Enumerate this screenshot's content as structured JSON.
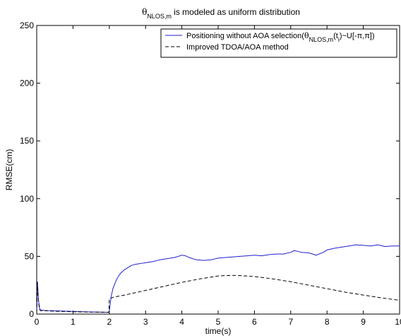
{
  "chart_data": {
    "type": "line",
    "title": {
      "parts": [
        {
          "text": "θ",
          "style": "symbol"
        },
        {
          "text": "NLOS,m",
          "style": "sub"
        },
        {
          "text": " is modeled as uniform distribution",
          "style": "normal"
        }
      ]
    },
    "xlabel": "time(s)",
    "ylabel": "RMSE(cm)",
    "xlim": [
      0,
      10
    ],
    "ylim": [
      0,
      250
    ],
    "xticks": [
      0,
      1,
      2,
      3,
      4,
      5,
      6,
      7,
      8,
      9,
      10
    ],
    "yticks": [
      0,
      50,
      100,
      150,
      200,
      250
    ],
    "grid": false,
    "legend_position": "top-right",
    "series": [
      {
        "name": "Positioning without AOA selection(θNLOS,m(ti)~U[-π,π])",
        "legend_parts": [
          {
            "text": "Positioning without AOA selection(",
            "style": "normal"
          },
          {
            "text": "θ",
            "style": "symbol"
          },
          {
            "text": "NLOS,m",
            "style": "sub"
          },
          {
            "text": "(t",
            "style": "normal"
          },
          {
            "text": "i",
            "style": "sub"
          },
          {
            "text": ")~U[-π,π])",
            "style": "normal"
          }
        ],
        "color": "#1f1fd0",
        "dash": "solid",
        "x": [
          0,
          0.02,
          0.05,
          0.08,
          0.1,
          0.2,
          0.3,
          0.5,
          1.0,
          1.5,
          1.99,
          2.0,
          2.05,
          2.1,
          2.2,
          2.3,
          2.4,
          2.5,
          2.6,
          2.7,
          2.8,
          2.9,
          3.0,
          3.2,
          3.4,
          3.6,
          3.8,
          4.0,
          4.1,
          4.2,
          4.4,
          4.6,
          4.8,
          5.0,
          5.2,
          5.4,
          5.6,
          5.8,
          6.0,
          6.2,
          6.4,
          6.6,
          6.8,
          7.0,
          7.1,
          7.3,
          7.5,
          7.7,
          7.9,
          8.0,
          8.2,
          8.4,
          8.6,
          8.8,
          9.0,
          9.2,
          9.4,
          9.6,
          9.8,
          10.0
        ],
        "y": [
          1.0,
          28.0,
          12.0,
          5.0,
          3.5,
          3.2,
          3.0,
          2.8,
          2.3,
          1.8,
          1.5,
          2.0,
          15.0,
          22.0,
          30.0,
          35.0,
          38.0,
          40.0,
          42.0,
          43.0,
          43.5,
          44.0,
          44.5,
          45.5,
          47.0,
          48.0,
          49.0,
          51.0,
          50.5,
          49.0,
          47.0,
          46.5,
          47.0,
          48.5,
          49.0,
          49.5,
          50.0,
          50.5,
          51.0,
          50.5,
          51.5,
          52.0,
          52.0,
          53.5,
          55.0,
          53.5,
          53.0,
          51.0,
          53.5,
          55.5,
          57.0,
          58.0,
          59.0,
          60.0,
          59.5,
          59.0,
          60.0,
          58.5,
          59.0,
          59.0
        ]
      },
      {
        "name": "Improved TDOA/AOA method",
        "legend_parts": [
          {
            "text": "Improved TDOA/AOA method",
            "style": "normal"
          }
        ],
        "color": "#000000",
        "dash": "dashed",
        "x": [
          0,
          0.02,
          0.05,
          0.08,
          0.1,
          0.3,
          0.5,
          1.0,
          1.5,
          1.99,
          2.0,
          2.1,
          2.5,
          3.0,
          3.5,
          4.0,
          4.5,
          5.0,
          5.3,
          5.5,
          6.0,
          6.5,
          7.0,
          7.5,
          8.0,
          8.5,
          9.0,
          9.5,
          10.0
        ],
        "y": [
          1.0,
          27.0,
          10.0,
          4.0,
          3.0,
          2.8,
          2.5,
          2.0,
          1.7,
          1.5,
          13.0,
          14.5,
          17.0,
          20.5,
          24.0,
          27.5,
          30.5,
          33.0,
          33.5,
          33.5,
          32.5,
          30.5,
          28.0,
          25.0,
          22.0,
          19.0,
          16.5,
          14.0,
          12.0
        ]
      }
    ]
  }
}
